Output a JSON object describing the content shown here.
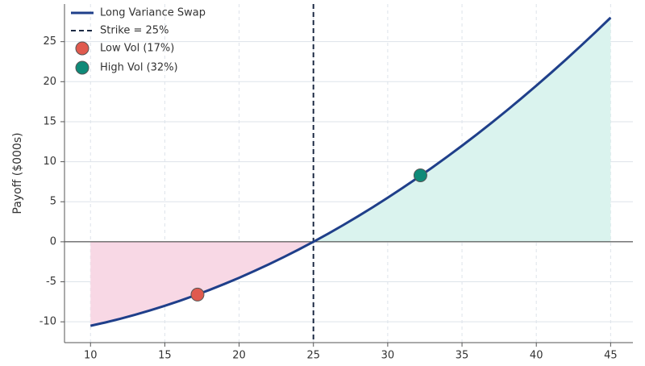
{
  "chart_data": {
    "type": "line",
    "ylabel": "Payoff ($000s)",
    "x": [
      10,
      11,
      12,
      13,
      14,
      15,
      16,
      17,
      18,
      19,
      20,
      21,
      22,
      23,
      24,
      25,
      26,
      27,
      28,
      29,
      30,
      31,
      32,
      33,
      34,
      35,
      36,
      37,
      38,
      39,
      40,
      41,
      42,
      43,
      44,
      45
    ],
    "series": [
      {
        "name": "Long Variance Swap",
        "color": "#1f3f8a",
        "values": [
          -10.5,
          -10.08,
          -9.62,
          -9.12,
          -8.58,
          -8,
          -7.38,
          -6.72,
          -6.02,
          -5.28,
          -4.5,
          -3.68,
          -2.82,
          -1.92,
          -0.98,
          0,
          1.02,
          2.08,
          3.18,
          4.32,
          5.5,
          6.72,
          7.98,
          9.28,
          10.62,
          12,
          13.42,
          14.88,
          16.38,
          17.92,
          19.5,
          21.12,
          22.78,
          24.48,
          26.22,
          28
        ]
      }
    ],
    "strike": {
      "name": "Strike = 25%",
      "x": 25,
      "color": "#1c2a44"
    },
    "zero_line": 0,
    "points": [
      {
        "name": "Low Vol (17%)",
        "x": 17.2,
        "y": -6.6,
        "color": "#e05a4e"
      },
      {
        "name": "High Vol (32%)",
        "x": 32.2,
        "y": 8.3,
        "color": "#0f8a78"
      }
    ],
    "loss_fill": "#f8d8e5",
    "gain_fill": "#daf3ee",
    "xlim": [
      8.25,
      46.5
    ],
    "ylim": [
      -12.6,
      29.7
    ],
    "xticks": [
      10,
      15,
      20,
      25,
      30,
      35,
      40,
      45
    ],
    "yticks": [
      -10,
      -5,
      0,
      5,
      10,
      15,
      20,
      25
    ],
    "grid": true,
    "legend": "upper left"
  }
}
